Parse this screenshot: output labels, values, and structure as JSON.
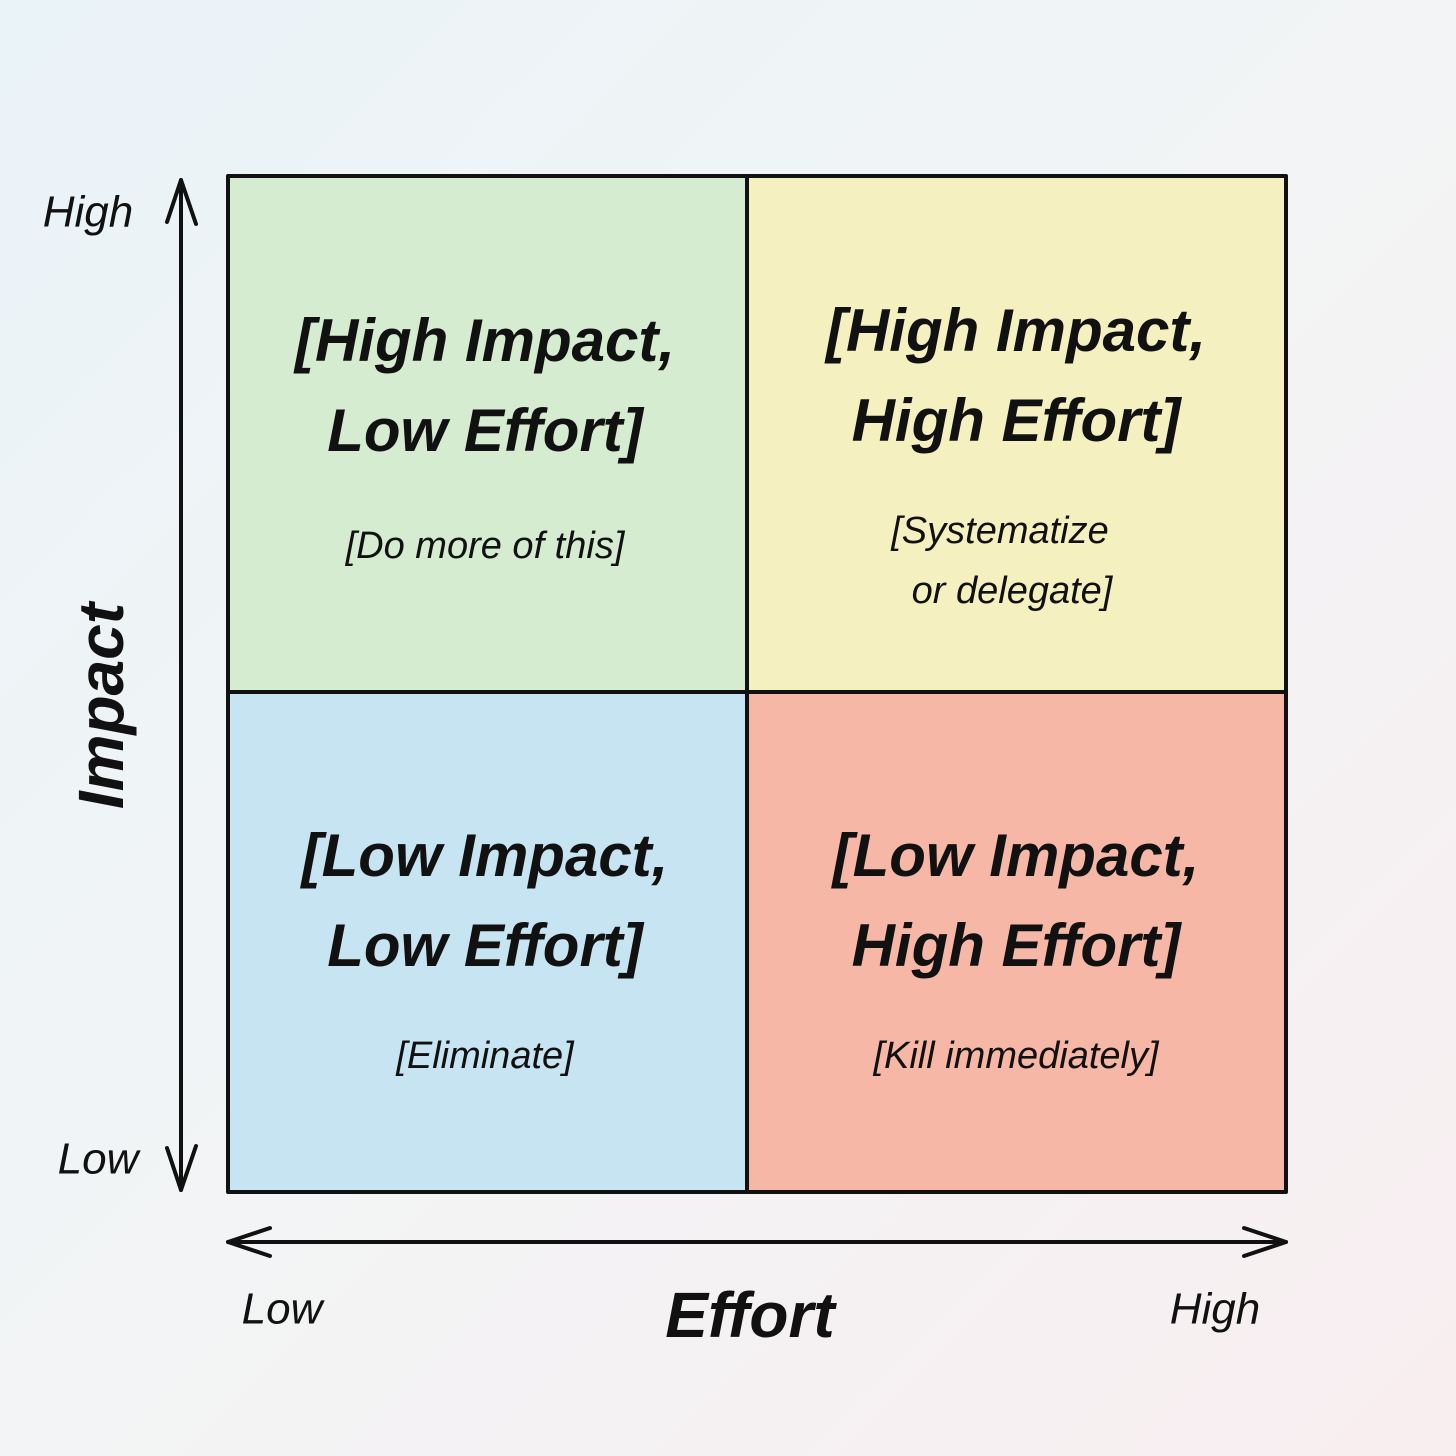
{
  "y_axis": {
    "label": "Impact",
    "high": "High",
    "low": "Low"
  },
  "x_axis": {
    "label": "Effort",
    "low": "Low",
    "high": "High"
  },
  "quadrants": [
    {
      "title": [
        "[High Impact,",
        "Low Effort]"
      ],
      "action": [
        "[Do more of this]"
      ]
    },
    {
      "title": [
        "[High Impact,",
        "High Effort]"
      ],
      "action": [
        "[Systematize",
        "or delegate]"
      ]
    },
    {
      "title": [
        "[Low Impact,",
        "Low Effort]"
      ],
      "action": [
        "[Eliminate]"
      ]
    },
    {
      "title": [
        "[Low Impact,",
        "High Effort]"
      ],
      "action": [
        "[Kill immediately]"
      ]
    }
  ]
}
